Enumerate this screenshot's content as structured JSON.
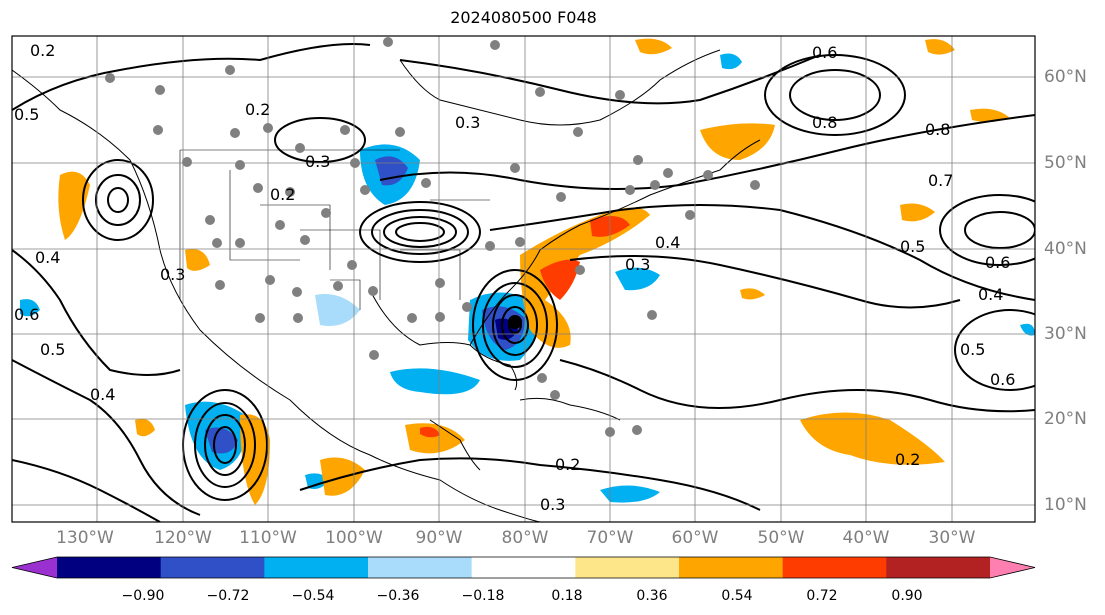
{
  "title": "2024080500 F048",
  "lon_labels": [
    "130°W",
    "120°W",
    "110°W",
    "100°W",
    "90°W",
    "80°W",
    "70°W",
    "60°W",
    "50°W",
    "40°W",
    "30°W"
  ],
  "lat_labels": [
    "60°N",
    "50°N",
    "40°N",
    "30°N",
    "20°N",
    "10°N"
  ],
  "colorbar": {
    "ticks": [
      "−0.90",
      "−0.72",
      "−0.54",
      "−0.36",
      "−0.18",
      "0.18",
      "0.36",
      "0.54",
      "0.72",
      "0.90"
    ],
    "colors": [
      "#9b30d0",
      "#000080",
      "#3050c8",
      "#00b0f0",
      "#a8dcfa",
      "#ffffff",
      "#fde68a",
      "#ffa500",
      "#ff3c00",
      "#b22222",
      "#ff80b0"
    ]
  },
  "contour_labels": [
    {
      "text": "0.2"
    },
    {
      "text": "0.2"
    },
    {
      "text": "0.3"
    },
    {
      "text": "0.2"
    },
    {
      "text": "0.4"
    },
    {
      "text": "0.3"
    },
    {
      "text": "0.4"
    },
    {
      "text": "0.5"
    },
    {
      "text": "0.6"
    },
    {
      "text": "0.8"
    },
    {
      "text": "0.8"
    },
    {
      "text": "0.7"
    },
    {
      "text": "0.6"
    },
    {
      "text": "0.5"
    },
    {
      "text": "0.4"
    },
    {
      "text": "0.3"
    },
    {
      "text": "0.2"
    },
    {
      "text": "0.2"
    },
    {
      "text": "0.3"
    },
    {
      "text": "0.5"
    },
    {
      "text": "0.6"
    },
    {
      "text": "0.6"
    },
    {
      "text": "0.4"
    },
    {
      "text": "0.5"
    },
    {
      "text": "0.3"
    }
  ]
}
